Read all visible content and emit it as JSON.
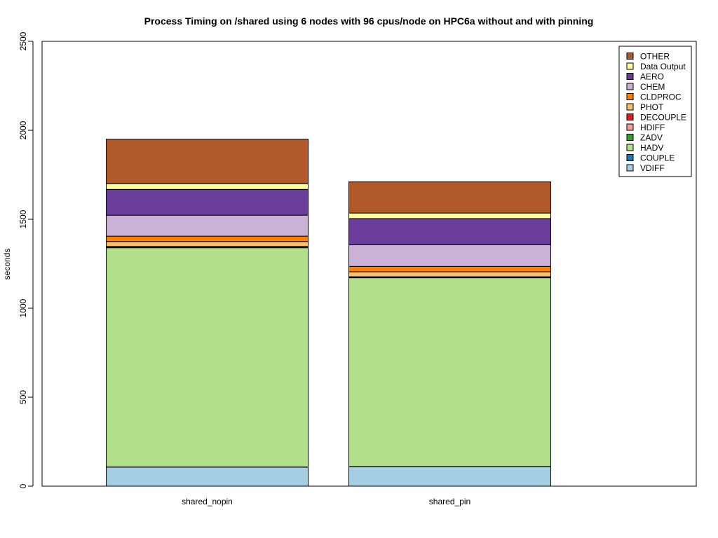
{
  "chart_data": {
    "type": "bar",
    "stacked": true,
    "title": "Process Timing on /shared using 6 nodes with 96 cpus/node on HPC6a without and with pinning",
    "xlabel": "",
    "ylabel": "seconds",
    "ylim": [
      0,
      2500
    ],
    "yticks": [
      0,
      500,
      1000,
      1500,
      2000,
      2500
    ],
    "grid": false,
    "legend_position": "top-right",
    "categories": [
      "shared_nopin",
      "shared_pin"
    ],
    "series": [
      {
        "name": "VDIFF",
        "color": "#a6cee3",
        "values": [
          107,
          110
        ]
      },
      {
        "name": "COUPLE",
        "color": "#1f78b4",
        "values": [
          1,
          1
        ]
      },
      {
        "name": "HADV",
        "color": "#b2df8a",
        "values": [
          1232,
          1060
        ]
      },
      {
        "name": "ZADV",
        "color": "#33a02c",
        "values": [
          5,
          4
        ]
      },
      {
        "name": "HDIFF",
        "color": "#fb9a99",
        "values": [
          1,
          1
        ]
      },
      {
        "name": "DECOUPLE",
        "color": "#e31a1c",
        "values": [
          1,
          1
        ]
      },
      {
        "name": "PHOT",
        "color": "#fdbf6f",
        "values": [
          28,
          28
        ]
      },
      {
        "name": "CLDPROC",
        "color": "#ff7f00",
        "values": [
          30,
          30
        ]
      },
      {
        "name": "CHEM",
        "color": "#cab2d6",
        "values": [
          118,
          122
        ]
      },
      {
        "name": "AERO",
        "color": "#6a3d9a",
        "values": [
          145,
          147
        ]
      },
      {
        "name": "Data Output",
        "color": "#ffff99",
        "values": [
          32,
          31
        ]
      },
      {
        "name": "OTHER",
        "color": "#b15928",
        "values": [
          250,
          175
        ]
      }
    ]
  }
}
